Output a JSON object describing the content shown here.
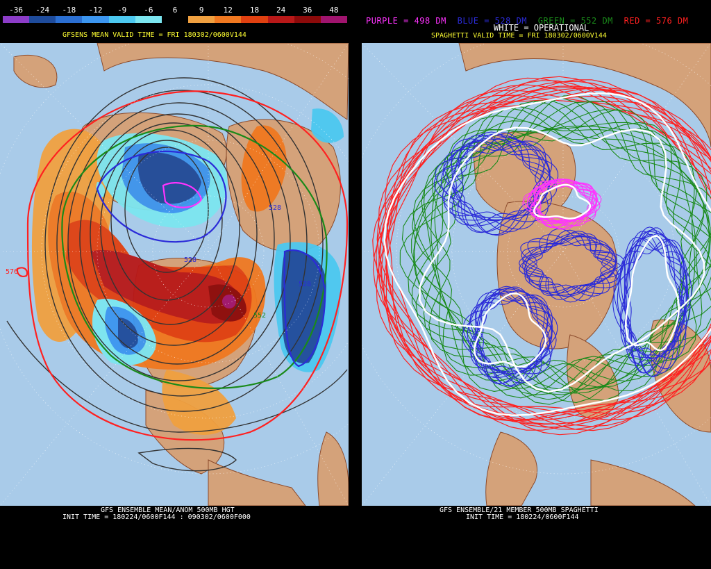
{
  "left": {
    "colorbar_ticks": [
      "-36",
      "-24",
      "-18",
      "-12",
      "-9",
      "-6",
      "6",
      "9",
      "12",
      "18",
      "24",
      "36",
      "48"
    ],
    "colorbar_colors": [
      "#8c3cc8",
      "#1e4b9b",
      "#2b6fd2",
      "#3c96f0",
      "#4cc8f0",
      "#7ce6f0",
      "#000000",
      "#f0a040",
      "#f07820",
      "#e04010",
      "#b81818",
      "#8c0a0a",
      "#a0146e"
    ],
    "valid_time": "GFSENS MEAN VALID TIME = FRI 180302/0600V144",
    "bottom_title": "GFS ENSEMBLE MEAN/ANOM 500MB HGT",
    "bottom_init": "INIT TIME = 180224/0600F144 : 090302/0600F000",
    "contour_labels": [
      "576",
      "528",
      "528",
      "528",
      "552"
    ]
  },
  "right": {
    "legend": {
      "purple": "PURPLE = 498 DM",
      "blue": "BLUE = 528 DM",
      "green": "GREEN = 552 DM",
      "red": "RED = 576 DM",
      "white": "WHITE = OPERATIONAL"
    },
    "legend_colors": {
      "purple": "#ff33ff",
      "blue": "#2b2bd8",
      "green": "#1a8a1a",
      "red": "#ff2020",
      "white": "#ffffff"
    },
    "valid_time": "SPAGHETTI VALID TIME = FRI 180302/0600V144",
    "bottom_title": "GFS ENSEMBLE/21 MEMBER 500MB SPAGHETTI",
    "bottom_init": "INIT TIME = 180224/0600F144"
  },
  "colors": {
    "ocean": "#a9cbe9",
    "land": "#d4a27a",
    "coast": "#8b4a2b"
  }
}
